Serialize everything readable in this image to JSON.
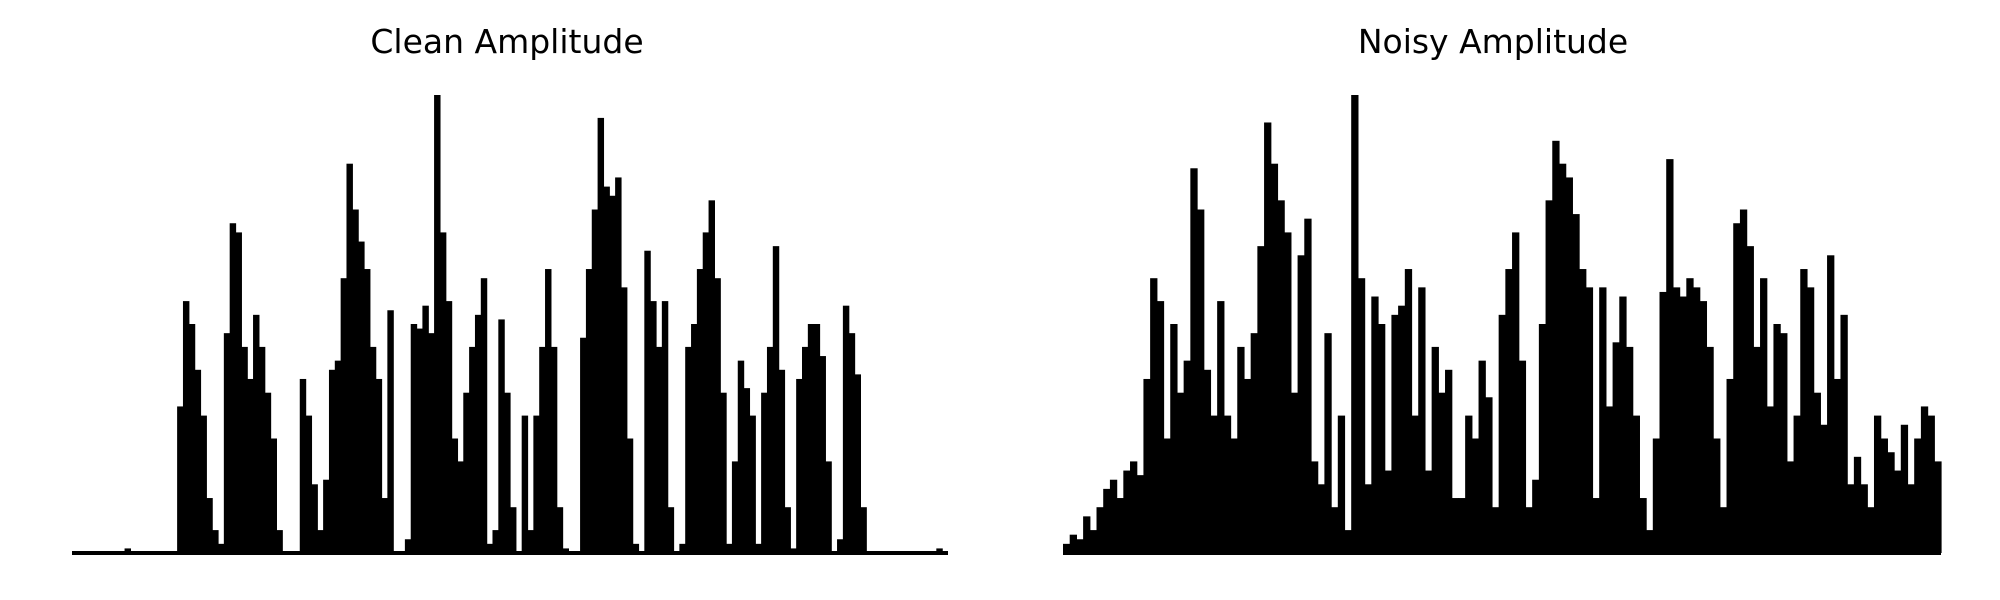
{
  "chart_data": [
    {
      "type": "area",
      "title": "Clean Amplitude",
      "xlabel": "",
      "ylabel": "",
      "axes_visible": false,
      "grid": false,
      "legend": "none",
      "color": "#000000",
      "series": [
        {
          "values": [
            0.0,
            0.0,
            0.0,
            0.0,
            0.0,
            0.0,
            0.0,
            0.0,
            0.0,
            0.01,
            0.0,
            0.0,
            0.0,
            0.0,
            0.0,
            0.0,
            0.0,
            0.0,
            0.32,
            0.55,
            0.5,
            0.4,
            0.3,
            0.12,
            0.05,
            0.02,
            0.48,
            0.72,
            0.7,
            0.45,
            0.38,
            0.52,
            0.45,
            0.35,
            0.25,
            0.05,
            0.0,
            0.0,
            0.0,
            0.38,
            0.3,
            0.15,
            0.05,
            0.16,
            0.4,
            0.42,
            0.6,
            0.85,
            0.75,
            0.68,
            0.62,
            0.45,
            0.38,
            0.12,
            0.53,
            0.0,
            0.0,
            0.03,
            0.5,
            0.49,
            0.54,
            0.48,
            1.0,
            0.7,
            0.55,
            0.25,
            0.2,
            0.35,
            0.45,
            0.52,
            0.6,
            0.02,
            0.05,
            0.51,
            0.35,
            0.1,
            0.0,
            0.3,
            0.05,
            0.3,
            0.45,
            0.62,
            0.45,
            0.1,
            0.01,
            0.0,
            0.0,
            0.47,
            0.62,
            0.75,
            0.95,
            0.8,
            0.78,
            0.82,
            0.58,
            0.25,
            0.02,
            0.0,
            0.66,
            0.55,
            0.45,
            0.55,
            0.1,
            0.0,
            0.02,
            0.45,
            0.5,
            0.62,
            0.7,
            0.77,
            0.6,
            0.35,
            0.02,
            0.2,
            0.42,
            0.36,
            0.3,
            0.02,
            0.35,
            0.45,
            0.67,
            0.4,
            0.1,
            0.01,
            0.38,
            0.45,
            0.5,
            0.5,
            0.43,
            0.2,
            0.0,
            0.03,
            0.54,
            0.48,
            0.39,
            0.1,
            0.0,
            0.0,
            0.0,
            0.0,
            0.0,
            0.0,
            0.0,
            0.0,
            0.0,
            0.0,
            0.0,
            0.0,
            0.01,
            0.0
          ]
        }
      ]
    },
    {
      "type": "area",
      "title": "Noisy Amplitude",
      "xlabel": "",
      "ylabel": "",
      "axes_visible": false,
      "grid": false,
      "legend": "none",
      "color": "#000000",
      "series": [
        {
          "values": [
            0.02,
            0.04,
            0.03,
            0.08,
            0.05,
            0.1,
            0.14,
            0.16,
            0.12,
            0.18,
            0.2,
            0.17,
            0.38,
            0.6,
            0.55,
            0.25,
            0.5,
            0.35,
            0.42,
            0.84,
            0.75,
            0.4,
            0.3,
            0.55,
            0.3,
            0.25,
            0.45,
            0.38,
            0.48,
            0.67,
            0.94,
            0.85,
            0.77,
            0.7,
            0.35,
            0.65,
            0.73,
            0.2,
            0.15,
            0.48,
            0.1,
            0.3,
            0.05,
            1.0,
            0.6,
            0.15,
            0.56,
            0.5,
            0.18,
            0.52,
            0.54,
            0.62,
            0.3,
            0.58,
            0.18,
            0.45,
            0.35,
            0.4,
            0.12,
            0.12,
            0.3,
            0.25,
            0.42,
            0.34,
            0.1,
            0.52,
            0.62,
            0.7,
            0.42,
            0.1,
            0.16,
            0.5,
            0.77,
            0.9,
            0.85,
            0.82,
            0.74,
            0.62,
            0.58,
            0.12,
            0.58,
            0.32,
            0.46,
            0.56,
            0.45,
            0.3,
            0.12,
            0.05,
            0.25,
            0.57,
            0.86,
            0.58,
            0.56,
            0.6,
            0.58,
            0.55,
            0.45,
            0.25,
            0.1,
            0.38,
            0.72,
            0.75,
            0.67,
            0.45,
            0.6,
            0.32,
            0.5,
            0.48,
            0.2,
            0.3,
            0.62,
            0.58,
            0.35,
            0.28,
            0.65,
            0.38,
            0.52,
            0.15,
            0.21,
            0.15,
            0.1,
            0.3,
            0.25,
            0.22,
            0.18,
            0.28,
            0.15,
            0.25,
            0.32,
            0.3,
            0.2
          ]
        }
      ]
    }
  ]
}
